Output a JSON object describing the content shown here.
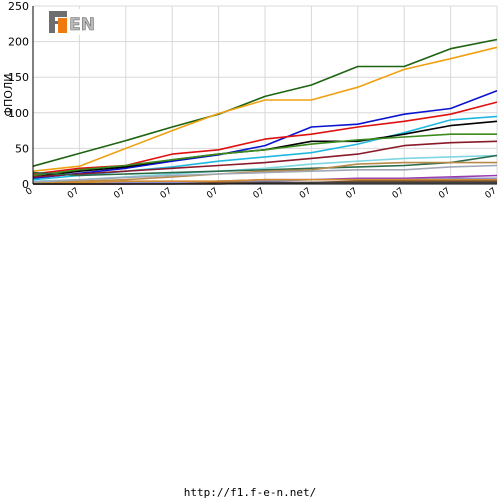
{
  "logo": {
    "text": "F1EN",
    "colors": {
      "dark": "#6e6e6e",
      "accent": "#f07a10",
      "light": "#b9b9b9"
    }
  },
  "footer": {
    "url": "http://f1.f-e-n.net/"
  },
  "chart_data": {
    "type": "line",
    "ylabel": "ФПОЛИ",
    "ylim": [
      0,
      250
    ],
    "yticks": [
      0,
      50,
      100,
      150,
      200,
      250
    ],
    "grid": true,
    "legend": "none",
    "categories": [
      "0",
      "07",
      "07",
      "07",
      "07",
      "07",
      "07",
      "07",
      "07",
      "07",
      "07"
    ],
    "series": [
      {
        "color": "#1e6410",
        "values": [
          25,
          43,
          61,
          80,
          98,
          123,
          139,
          165,
          165,
          190,
          203
        ]
      },
      {
        "color": "#f0a010",
        "values": [
          18,
          25,
          50,
          75,
          99,
          118,
          118,
          136,
          161,
          176,
          192
        ]
      },
      {
        "color": "#0a14d0",
        "values": [
          8,
          15,
          22,
          32,
          41,
          54,
          80,
          84,
          98,
          106,
          131
        ]
      },
      {
        "color": "#e01010",
        "values": [
          14,
          22,
          26,
          42,
          48,
          63,
          70,
          80,
          88,
          98,
          115
        ]
      },
      {
        "color": "#20b8e0",
        "values": [
          6,
          12,
          18,
          24,
          32,
          38,
          44,
          56,
          72,
          90,
          95
        ]
      },
      {
        "color": "#000000",
        "values": [
          10,
          18,
          24,
          34,
          42,
          48,
          60,
          60,
          70,
          82,
          88
        ]
      },
      {
        "color": "#3a8a1e",
        "values": [
          12,
          20,
          26,
          34,
          42,
          48,
          56,
          62,
          66,
          70,
          70
        ]
      },
      {
        "color": "#8a1a2a",
        "values": [
          10,
          14,
          18,
          22,
          26,
          30,
          36,
          42,
          54,
          58,
          60
        ]
      },
      {
        "color": "#7ed6e0",
        "values": [
          4,
          6,
          10,
          14,
          18,
          22,
          28,
          32,
          36,
          38,
          40
        ]
      },
      {
        "color": "#2a6a4a",
        "values": [
          16,
          12,
          14,
          16,
          18,
          20,
          22,
          24,
          26,
          30,
          40
        ]
      },
      {
        "color": "#b88a4a",
        "values": [
          2,
          4,
          6,
          10,
          14,
          18,
          20,
          28,
          30,
          30,
          30
        ]
      },
      {
        "color": "#a0a8b8",
        "values": [
          3,
          6,
          9,
          12,
          14,
          16,
          18,
          20,
          20,
          24,
          26
        ]
      },
      {
        "color": "#9a3cb0",
        "values": [
          0,
          0,
          0,
          2,
          4,
          6,
          6,
          8,
          8,
          10,
          12
        ]
      },
      {
        "color": "#9090d0",
        "values": [
          0,
          0,
          2,
          2,
          4,
          4,
          6,
          6,
          6,
          8,
          8
        ]
      },
      {
        "color": "#d08a30",
        "values": [
          0,
          2,
          4,
          4,
          4,
          6,
          6,
          6,
          6,
          6,
          6
        ]
      },
      {
        "color": "#7a5030",
        "values": [
          0,
          0,
          0,
          0,
          2,
          2,
          2,
          4,
          4,
          4,
          4
        ]
      },
      {
        "color": "#404040",
        "values": [
          0,
          0,
          0,
          0,
          0,
          2,
          2,
          2,
          2,
          2,
          2
        ]
      }
    ]
  }
}
